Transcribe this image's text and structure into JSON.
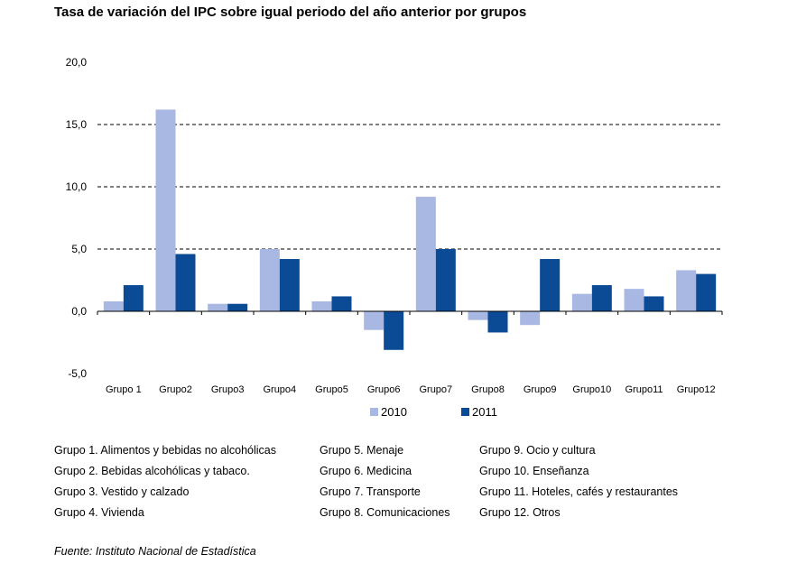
{
  "title": "Tasa de variación del IPC sobre igual periodo del año anterior por grupos",
  "chart_data": {
    "type": "bar",
    "title": "Tasa de variación del IPC sobre igual periodo del año anterior por grupos",
    "xlabel": "",
    "ylabel": "",
    "categories": [
      "Grupo 1",
      "Grupo2",
      "Grupo3",
      "Grupo4",
      "Grupo5",
      "Grupo6",
      "Grupo7",
      "Grupo8",
      "Grupo9",
      "Grupo10",
      "Grupo11",
      "Grupo12"
    ],
    "series": [
      {
        "name": "2010",
        "color": "#a9b8e3",
        "values": [
          0.8,
          16.2,
          0.6,
          5.0,
          0.8,
          -1.5,
          9.2,
          -0.7,
          -1.1,
          1.4,
          1.8,
          3.3
        ]
      },
      {
        "name": "2011",
        "color": "#0b4a94",
        "values": [
          2.1,
          4.6,
          0.6,
          4.2,
          1.2,
          -3.1,
          5.0,
          -1.7,
          4.2,
          2.1,
          1.2,
          3.0
        ]
      }
    ],
    "ylim": [
      -5,
      20
    ],
    "yticks": [
      -5,
      0,
      5,
      10,
      15,
      20
    ],
    "ytick_labels": [
      "-5,0",
      "0,0",
      "5,0",
      "10,0",
      "15,0",
      "20,0"
    ],
    "grid": "dashed horizontal at 5, 10, 15",
    "legend": "bottom-center"
  },
  "group_notes": [
    [
      "Grupo 1. Alimentos y bebidas no alcohólicas",
      "Grupo 2. Bebidas alcohólicas y  tabaco.",
      "Grupo 3. Vestido y calzado",
      "Grupo 4. Vivienda"
    ],
    [
      "Grupo 5. Menaje",
      "Grupo 6. Medicina",
      "Grupo 7. Transporte",
      "Grupo 8. Comunicaciones"
    ],
    [
      "Grupo 9. Ocio y cultura",
      "Grupo 10. Enseñanza",
      "Grupo 11. Hoteles, cafés y restaurantes",
      "Grupo 12. Otros"
    ]
  ],
  "source": "Fuente: Instituto Nacional de Estadística"
}
